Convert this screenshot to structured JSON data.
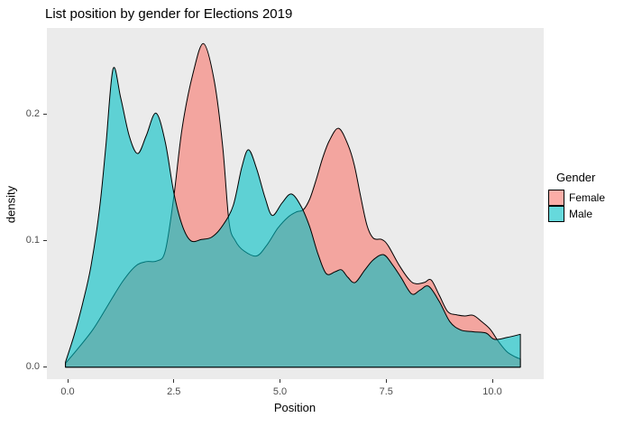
{
  "title": "List position by gender for Elections 2019",
  "chart_data": {
    "type": "area",
    "subtype": "overlapping kernel density estimate",
    "title": "List position by gender for Elections 2019",
    "xlabel": "Position",
    "ylabel": "density",
    "xlim": [
      -0.5,
      11.2
    ],
    "ylim": [
      -0.01,
      0.268
    ],
    "grid": "off",
    "panel_background": "#EBEBEB",
    "outline_color": "#000000",
    "fill_alpha": 0.6,
    "x_ticks": {
      "values": [
        0,
        2.5,
        5,
        7.5,
        10
      ],
      "labels": [
        "0.0",
        "2.5",
        "5.0",
        "7.5",
        "10.0"
      ]
    },
    "y_ticks": {
      "values": [
        0,
        0.1,
        0.2
      ],
      "labels": [
        "0.0",
        "0.1",
        "0.2"
      ]
    },
    "legend": {
      "title": "Gender",
      "position": "right",
      "items": [
        {
          "label": "Female",
          "color": "#F8766D"
        },
        {
          "label": "Male",
          "color": "#00BFC4"
        }
      ]
    },
    "series": [
      {
        "name": "Female",
        "color": "#F8766D",
        "points": [
          [
            -0.05,
            0.003
          ],
          [
            0.25,
            0.015
          ],
          [
            0.6,
            0.03
          ],
          [
            0.95,
            0.049
          ],
          [
            1.3,
            0.068
          ],
          [
            1.6,
            0.08
          ],
          [
            1.85,
            0.0835
          ],
          [
            2.1,
            0.084
          ],
          [
            2.3,
            0.092
          ],
          [
            2.5,
            0.135
          ],
          [
            2.7,
            0.19
          ],
          [
            2.95,
            0.232
          ],
          [
            3.2,
            0.256
          ],
          [
            3.45,
            0.227
          ],
          [
            3.65,
            0.175
          ],
          [
            3.8,
            0.115
          ],
          [
            3.95,
            0.1
          ],
          [
            4.15,
            0.092
          ],
          [
            4.45,
            0.088
          ],
          [
            4.7,
            0.097
          ],
          [
            4.95,
            0.11
          ],
          [
            5.2,
            0.119
          ],
          [
            5.4,
            0.123
          ],
          [
            5.55,
            0.1245
          ],
          [
            5.7,
            0.133
          ],
          [
            5.85,
            0.148
          ],
          [
            6.0,
            0.165
          ],
          [
            6.16,
            0.179
          ],
          [
            6.38,
            0.189
          ],
          [
            6.6,
            0.176
          ],
          [
            6.75,
            0.16
          ],
          [
            6.9,
            0.135
          ],
          [
            7.05,
            0.112
          ],
          [
            7.2,
            0.102
          ],
          [
            7.4,
            0.101
          ],
          [
            7.55,
            0.096
          ],
          [
            7.8,
            0.081
          ],
          [
            8.05,
            0.069
          ],
          [
            8.2,
            0.066
          ],
          [
            8.4,
            0.067
          ],
          [
            8.56,
            0.069
          ],
          [
            8.75,
            0.057
          ],
          [
            8.95,
            0.044
          ],
          [
            9.15,
            0.0415
          ],
          [
            9.35,
            0.0405
          ],
          [
            9.55,
            0.041
          ],
          [
            9.75,
            0.036
          ],
          [
            9.95,
            0.03
          ],
          [
            10.15,
            0.02
          ],
          [
            10.35,
            0.012
          ],
          [
            10.55,
            0.008
          ],
          [
            10.66,
            0.0065
          ]
        ]
      },
      {
        "name": "Male",
        "color": "#00BFC4",
        "points": [
          [
            -0.05,
            0.004
          ],
          [
            0.15,
            0.025
          ],
          [
            0.35,
            0.05
          ],
          [
            0.55,
            0.08
          ],
          [
            0.75,
            0.125
          ],
          [
            0.9,
            0.175
          ],
          [
            1.07,
            0.236
          ],
          [
            1.25,
            0.213
          ],
          [
            1.45,
            0.183
          ],
          [
            1.65,
            0.169
          ],
          [
            1.85,
            0.183
          ],
          [
            2.08,
            0.201
          ],
          [
            2.3,
            0.178
          ],
          [
            2.5,
            0.138
          ],
          [
            2.7,
            0.112
          ],
          [
            2.9,
            0.1
          ],
          [
            3.15,
            0.101
          ],
          [
            3.4,
            0.103
          ],
          [
            3.65,
            0.112
          ],
          [
            3.9,
            0.128
          ],
          [
            4.1,
            0.158
          ],
          [
            4.26,
            0.172
          ],
          [
            4.45,
            0.157
          ],
          [
            4.65,
            0.134
          ],
          [
            4.82,
            0.12
          ],
          [
            5.05,
            0.13
          ],
          [
            5.27,
            0.137
          ],
          [
            5.5,
            0.127
          ],
          [
            5.7,
            0.111
          ],
          [
            5.9,
            0.089
          ],
          [
            6.09,
            0.074
          ],
          [
            6.3,
            0.0755
          ],
          [
            6.45,
            0.077
          ],
          [
            6.6,
            0.071
          ],
          [
            6.77,
            0.067
          ],
          [
            7.0,
            0.077
          ],
          [
            7.2,
            0.085
          ],
          [
            7.44,
            0.089
          ],
          [
            7.65,
            0.081
          ],
          [
            7.85,
            0.071
          ],
          [
            8.1,
            0.058
          ],
          [
            8.3,
            0.061
          ],
          [
            8.5,
            0.064
          ],
          [
            8.75,
            0.052
          ],
          [
            9.0,
            0.036
          ],
          [
            9.25,
            0.0295
          ],
          [
            9.55,
            0.028
          ],
          [
            9.85,
            0.027
          ],
          [
            10.05,
            0.022
          ],
          [
            10.35,
            0.0235
          ],
          [
            10.66,
            0.026
          ]
        ]
      }
    ]
  }
}
